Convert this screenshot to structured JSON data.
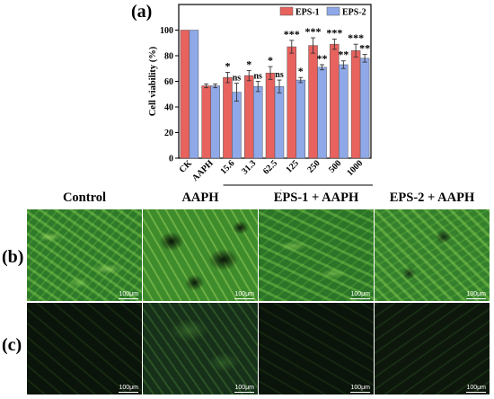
{
  "panel_a_label": "(a)",
  "panel_b_label": "(b)",
  "panel_c_label": "(c)",
  "chart_data": {
    "type": "bar",
    "xlabel": "Concentration (μg/mL) + AAPH",
    "ylabel": "Cell viability (%)",
    "ylim": [
      0,
      120
    ],
    "yticks": [
      "0",
      "20",
      "40",
      "60",
      "80",
      "100"
    ],
    "ytick_values": [
      0,
      20,
      40,
      60,
      80,
      100
    ],
    "categories": [
      "CK",
      "AAPH",
      "15.6",
      "31.3",
      "62.5",
      "125",
      "250",
      "500",
      "1000"
    ],
    "legend_position": "top-right",
    "series": [
      {
        "name": "EPS-1",
        "color": "#e8625e",
        "values": [
          100,
          56.5,
          63,
          64.5,
          66.5,
          87,
          88,
          89,
          84
        ],
        "errors": [
          0,
          1.5,
          4,
          4,
          5,
          5,
          6,
          4,
          5
        ],
        "sig": [
          "",
          "",
          "*",
          "*",
          "*",
          "***",
          "***",
          "***",
          "***"
        ]
      },
      {
        "name": "EPS-2",
        "color": "#8fa8e8",
        "values": [
          100,
          56.5,
          51.5,
          56,
          56,
          61,
          71,
          73,
          78
        ],
        "errors": [
          0,
          1.5,
          7,
          4,
          5,
          2,
          2,
          3,
          3
        ],
        "sig": [
          "",
          "",
          "ns",
          "ns",
          "ns",
          "*",
          "**",
          "**",
          "**"
        ]
      }
    ]
  },
  "micrograph_columns": [
    "Control",
    "AAPH",
    "EPS-1 + AAPH",
    "EPS-2 + AAPH"
  ],
  "scale_bar_label": "100μm"
}
